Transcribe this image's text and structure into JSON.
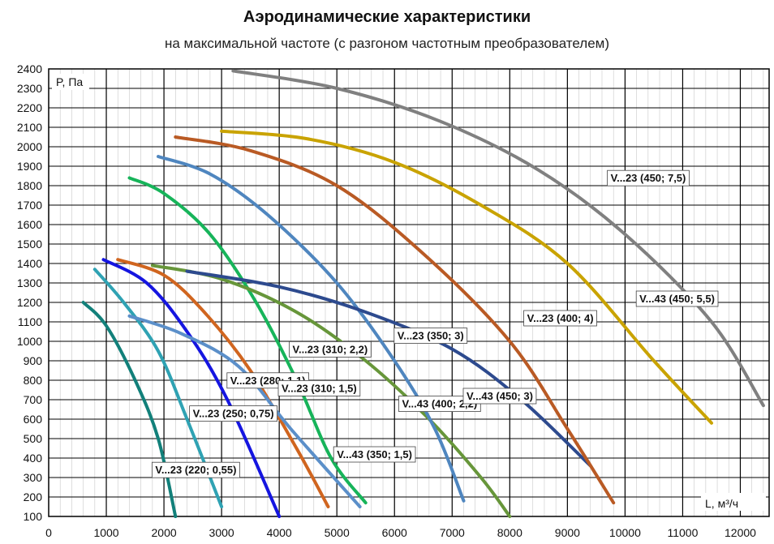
{
  "chart_data": {
    "type": "line",
    "title": "Аэродинамические характеристики",
    "subtitle": "на максимальной частоте (с разгоном частотным преобразователем)",
    "xlabel": "L, м³/ч",
    "ylabel": "P, Па",
    "xlim": [
      0,
      12500
    ],
    "ylim": [
      100,
      2400
    ],
    "x_ticks": [
      "0",
      "1000",
      "2000",
      "3000",
      "4000",
      "5000",
      "6000",
      "7000",
      "8000",
      "9000",
      "10000",
      "11000",
      "12000"
    ],
    "y_ticks": [
      "100",
      "200",
      "300",
      "400",
      "500",
      "600",
      "700",
      "800",
      "900",
      "1000",
      "1100",
      "1200",
      "1300",
      "1400",
      "1500",
      "1600",
      "1700",
      "1800",
      "1900",
      "2000",
      "2100",
      "2200",
      "2300",
      "2400"
    ],
    "grid": true,
    "legend": "inline labels",
    "series": [
      {
        "name": "V...23 (220; 0,55)",
        "color": "#12807a",
        "points": [
          [
            600,
            1200
          ],
          [
            1000,
            1080
          ],
          [
            1500,
            800
          ],
          [
            1900,
            500
          ],
          [
            2200,
            100
          ]
        ],
        "label_anchor": [
          1850,
          320
        ]
      },
      {
        "name": "V...23 (250; 0,75)",
        "color": "#2fa2b3",
        "points": [
          [
            800,
            1370
          ],
          [
            1300,
            1200
          ],
          [
            1900,
            950
          ],
          [
            2400,
            600
          ],
          [
            3000,
            150
          ]
        ],
        "label_anchor": [
          2500,
          610
        ]
      },
      {
        "name": "V...23 (280; 1,1)",
        "color": "#1515e0",
        "points": [
          [
            950,
            1420
          ],
          [
            1700,
            1300
          ],
          [
            2400,
            1050
          ],
          [
            3100,
            700
          ],
          [
            4000,
            100
          ]
        ],
        "label_anchor": [
          3150,
          780
        ]
      },
      {
        "name": "V...23 (310; 1,5)",
        "color": "#d0651f",
        "points": [
          [
            1200,
            1420
          ],
          [
            2000,
            1340
          ],
          [
            2700,
            1150
          ],
          [
            3500,
            850
          ],
          [
            4300,
            450
          ],
          [
            4850,
            150
          ]
        ],
        "label_anchor": [
          4040,
          740
        ]
      },
      {
        "name": "V...43 (350; 1,5)",
        "color": "#5b8fc9",
        "points": [
          [
            1400,
            1130
          ],
          [
            2300,
            1040
          ],
          [
            3300,
            870
          ],
          [
            4200,
            550
          ],
          [
            5400,
            150
          ]
        ],
        "label_anchor": [
          5000,
          400
        ]
      },
      {
        "name": "V...23 (310; 2,2)",
        "color": "#17b45a",
        "points": [
          [
            1400,
            1840
          ],
          [
            2000,
            1760
          ],
          [
            2800,
            1550
          ],
          [
            3600,
            1200
          ],
          [
            4300,
            800
          ],
          [
            4900,
            400
          ],
          [
            5500,
            170
          ]
        ],
        "label_anchor": [
          4230,
          940
        ]
      },
      {
        "name": "V...43 (400; 2,2)",
        "color": "#67963a",
        "points": [
          [
            1800,
            1390
          ],
          [
            3000,
            1320
          ],
          [
            4300,
            1150
          ],
          [
            5500,
            900
          ],
          [
            6600,
            600
          ],
          [
            7500,
            300
          ],
          [
            8000,
            100
          ]
        ],
        "label_anchor": [
          6130,
          660
        ]
      },
      {
        "name": "V...23 (350; 3)",
        "color": "#4f86bf",
        "points": [
          [
            1900,
            1950
          ],
          [
            2800,
            1860
          ],
          [
            3800,
            1650
          ],
          [
            5000,
            1300
          ],
          [
            6000,
            900
          ],
          [
            6700,
            550
          ],
          [
            7200,
            180
          ]
        ],
        "label_anchor": [
          6050,
          1010
        ]
      },
      {
        "name": "V...43 (450; 3)",
        "color": "#2d4a8e",
        "points": [
          [
            2400,
            1360
          ],
          [
            4000,
            1280
          ],
          [
            5500,
            1150
          ],
          [
            7000,
            960
          ],
          [
            8200,
            700
          ],
          [
            9400,
            360
          ]
        ],
        "label_anchor": [
          7250,
          700
        ]
      },
      {
        "name": "V...23 (400; 4)",
        "color": "#b95a24",
        "points": [
          [
            2200,
            2050
          ],
          [
            3500,
            1980
          ],
          [
            5000,
            1800
          ],
          [
            6500,
            1450
          ],
          [
            8000,
            1000
          ],
          [
            9000,
            550
          ],
          [
            9800,
            170
          ]
        ],
        "label_anchor": [
          8300,
          1100
        ]
      },
      {
        "name": "V...43 (450; 5,5)",
        "color": "#c9a300",
        "points": [
          [
            3000,
            2080
          ],
          [
            4500,
            2040
          ],
          [
            6000,
            1920
          ],
          [
            7500,
            1700
          ],
          [
            9000,
            1400
          ],
          [
            10500,
            900
          ],
          [
            11500,
            580
          ]
        ],
        "label_anchor": [
          10250,
          1200
        ]
      },
      {
        "name": "V...23 (450; 7,5)",
        "color": "#808080",
        "points": [
          [
            3200,
            2390
          ],
          [
            5000,
            2300
          ],
          [
            6800,
            2130
          ],
          [
            8500,
            1880
          ],
          [
            10000,
            1550
          ],
          [
            11500,
            1100
          ],
          [
            12400,
            670
          ]
        ],
        "label_anchor": [
          9750,
          1820
        ]
      }
    ]
  }
}
